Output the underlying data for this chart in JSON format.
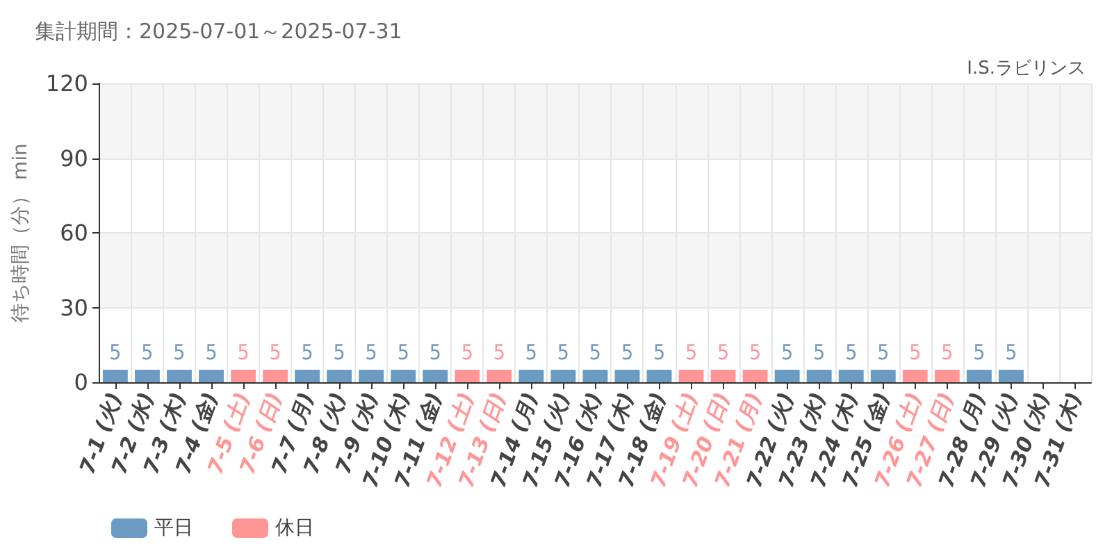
{
  "chart_data": {
    "type": "bar",
    "title": "集計期間：2025-07-01～2025-07-31",
    "subtitle": "I.S.ラビリンス",
    "ylabel": "待ち時間（分） min",
    "categories": [
      "7-1 (火)",
      "7-2 (水)",
      "7-3 (木)",
      "7-4 (金)",
      "7-5 (土)",
      "7-6 (日)",
      "7-7 (月)",
      "7-8 (火)",
      "7-9 (水)",
      "7-10 (木)",
      "7-11 (金)",
      "7-12 (土)",
      "7-13 (日)",
      "7-14 (月)",
      "7-15 (火)",
      "7-16 (水)",
      "7-17 (木)",
      "7-18 (金)",
      "7-19 (土)",
      "7-20 (日)",
      "7-21 (月)",
      "7-22 (火)",
      "7-23 (水)",
      "7-24 (木)",
      "7-25 (金)",
      "7-26 (土)",
      "7-27 (日)",
      "7-28 (月)",
      "7-29 (火)",
      "7-30 (水)",
      "7-31 (木)"
    ],
    "series": [
      {
        "name": "平日",
        "color": "#6b9bc3",
        "values": [
          5,
          5,
          5,
          5,
          null,
          null,
          5,
          5,
          5,
          5,
          5,
          null,
          null,
          5,
          5,
          5,
          5,
          5,
          null,
          null,
          null,
          5,
          5,
          5,
          5,
          null,
          null,
          5,
          5,
          null,
          null
        ]
      },
      {
        "name": "休日",
        "color": "#ff9696",
        "values": [
          null,
          null,
          null,
          null,
          5,
          5,
          null,
          null,
          null,
          null,
          null,
          5,
          5,
          null,
          null,
          null,
          null,
          null,
          5,
          5,
          5,
          null,
          null,
          null,
          null,
          5,
          5,
          null,
          null,
          null,
          null
        ]
      }
    ],
    "ylim": [
      0,
      120
    ],
    "yticks": [
      0,
      30,
      60,
      90,
      120
    ],
    "grid": true,
    "legend": "bottom left",
    "data_labels": true
  }
}
